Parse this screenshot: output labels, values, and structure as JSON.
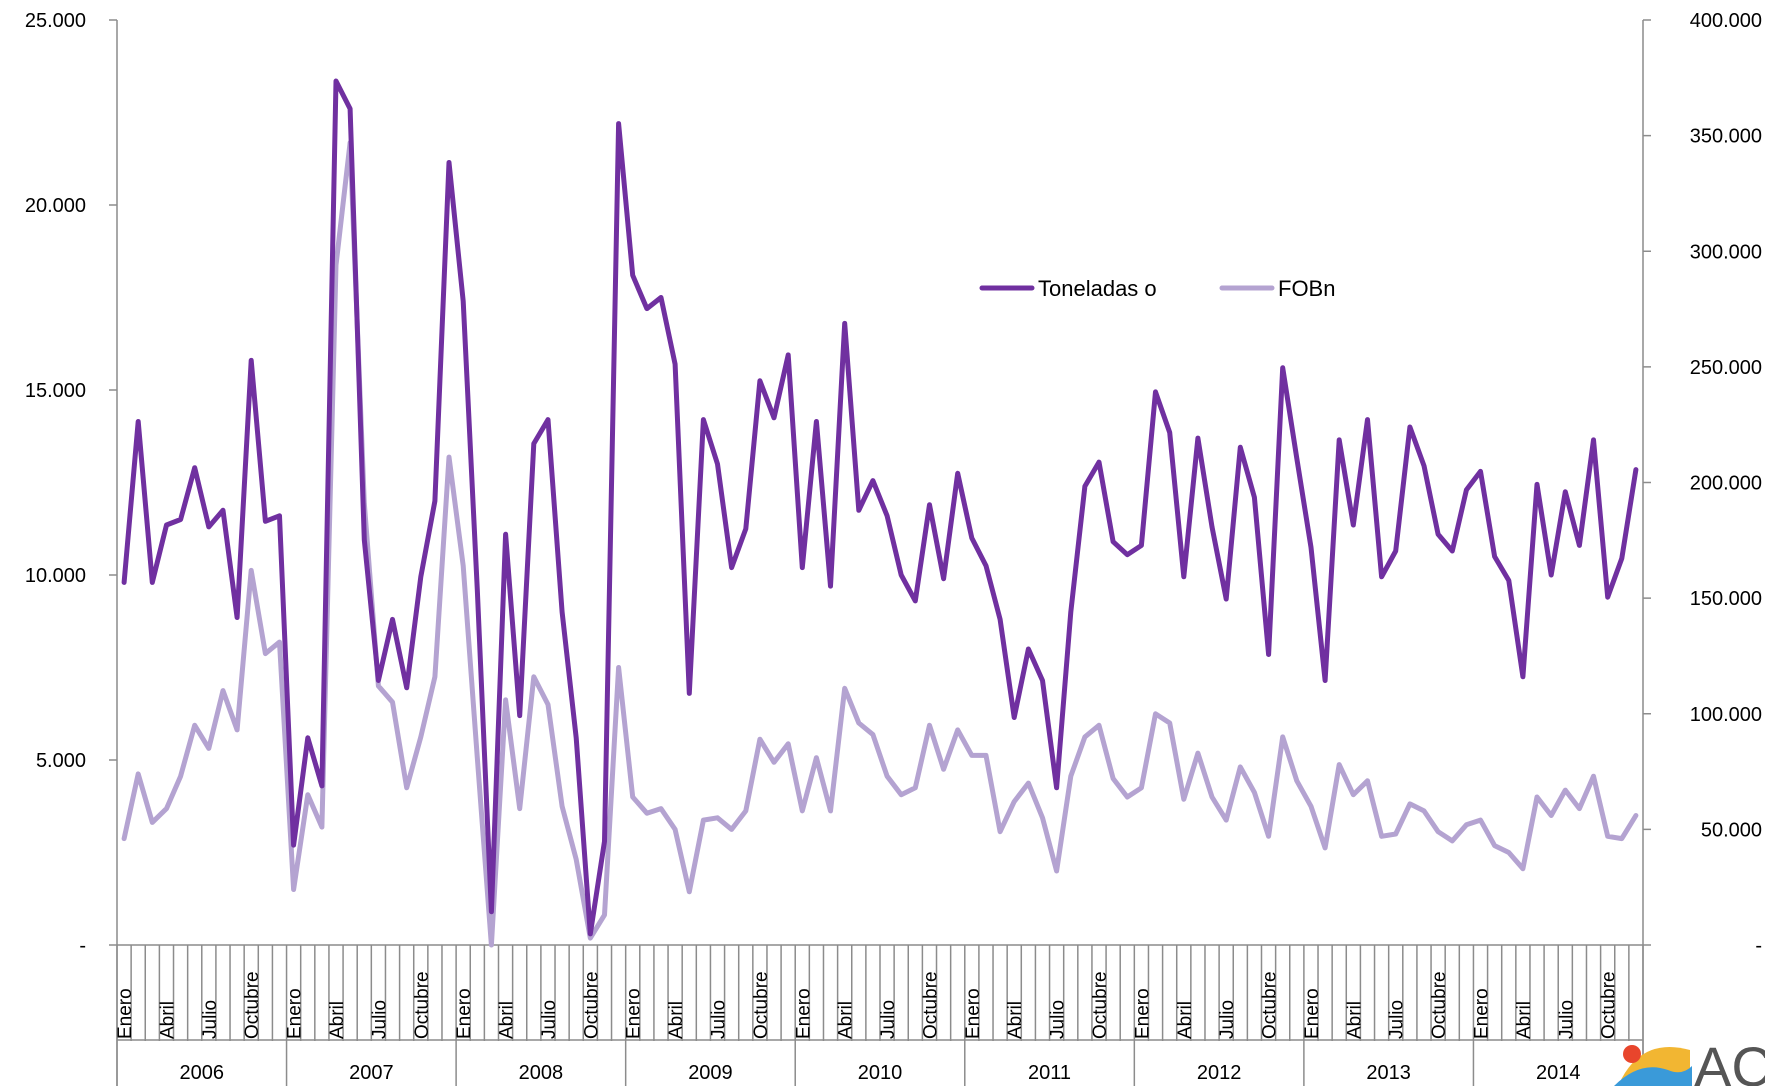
{
  "chart_data": {
    "type": "line",
    "title": "",
    "xlabel": "",
    "ylabel": "",
    "y_left": {
      "range": [
        0,
        25000
      ],
      "tick_labels": [
        "-",
        "5.000",
        "10.000",
        "15.000",
        "20.000",
        "25.000"
      ]
    },
    "y_right": {
      "range": [
        0,
        400000
      ],
      "tick_labels": [
        "-",
        "50.000",
        "100.000",
        "150.000",
        "200.000",
        "250.000",
        "300.000",
        "350.000",
        "400.000"
      ]
    },
    "years": [
      "2006",
      "2007",
      "2008",
      "2009",
      "2010",
      "2011",
      "2012",
      "2013",
      "2014"
    ],
    "month_tick_labels": [
      "Enero",
      "Abril",
      "Julio",
      "Octubre"
    ],
    "legend_position": "top-center",
    "grid": false,
    "series": [
      {
        "name": "Toneladas o",
        "axis": "left",
        "color": "#7030a0",
        "values": [
          9800,
          14150,
          9800,
          11350,
          11500,
          12900,
          11300,
          11750,
          8850,
          15800,
          11450,
          11600,
          2700,
          5600,
          4300,
          23350,
          22600,
          10950,
          7150,
          8800,
          6950,
          9950,
          12000,
          21150,
          17400,
          9600,
          900,
          11100,
          6200,
          13550,
          14200,
          9000,
          5600,
          300,
          2800,
          22200,
          18100,
          17200,
          17500,
          15700,
          6800,
          14200,
          13000,
          10200,
          11250,
          15250,
          14250,
          15950,
          10200,
          14150,
          9700,
          16800,
          11750,
          12550,
          11600,
          10000,
          9300,
          11900,
          9900,
          12750,
          11000,
          10250,
          8800,
          6150,
          8000,
          7150,
          4250,
          9000,
          12400,
          13050,
          10900,
          10550,
          10800,
          14950,
          13850,
          9950,
          13700,
          11300,
          9350,
          13450,
          12100,
          7850,
          15600,
          13150,
          10750,
          7150,
          13650,
          11350,
          14200,
          9950,
          10650,
          14000,
          12950,
          11100,
          10650,
          12300,
          12800,
          10500,
          9850,
          7250,
          12450,
          10000,
          12250,
          10800,
          13650,
          9400,
          10450,
          12850
        ]
      },
      {
        "name": "FOBn",
        "axis": "right",
        "color": "#b4a3d1",
        "values": [
          46000,
          74000,
          53000,
          59000,
          73000,
          95000,
          85000,
          110000,
          93000,
          162000,
          126000,
          131000,
          24000,
          65000,
          51000,
          294000,
          347000,
          191000,
          112000,
          105000,
          68000,
          90000,
          116000,
          211000,
          164000,
          81000,
          0,
          106000,
          59000,
          116000,
          104000,
          60000,
          37000,
          3000,
          13000,
          120000,
          64000,
          57000,
          59000,
          50000,
          23000,
          54000,
          55000,
          50000,
          58000,
          89000,
          79000,
          87000,
          58000,
          81000,
          58000,
          111000,
          96000,
          91000,
          73000,
          65000,
          68000,
          95000,
          76000,
          93000,
          82000,
          82000,
          49000,
          62000,
          70000,
          55000,
          32000,
          73000,
          90000,
          95000,
          72000,
          64000,
          68000,
          100000,
          96000,
          63000,
          83000,
          64000,
          54000,
          77000,
          66000,
          47000,
          90000,
          71000,
          60000,
          42000,
          78000,
          65000,
          71000,
          47000,
          48000,
          61000,
          58000,
          49000,
          45000,
          52000,
          54000,
          43000,
          40000,
          33000,
          64000,
          56000,
          67000,
          59000,
          73000,
          47000,
          46000,
          56000
        ]
      }
    ]
  },
  "logo": {
    "text": "AC"
  }
}
